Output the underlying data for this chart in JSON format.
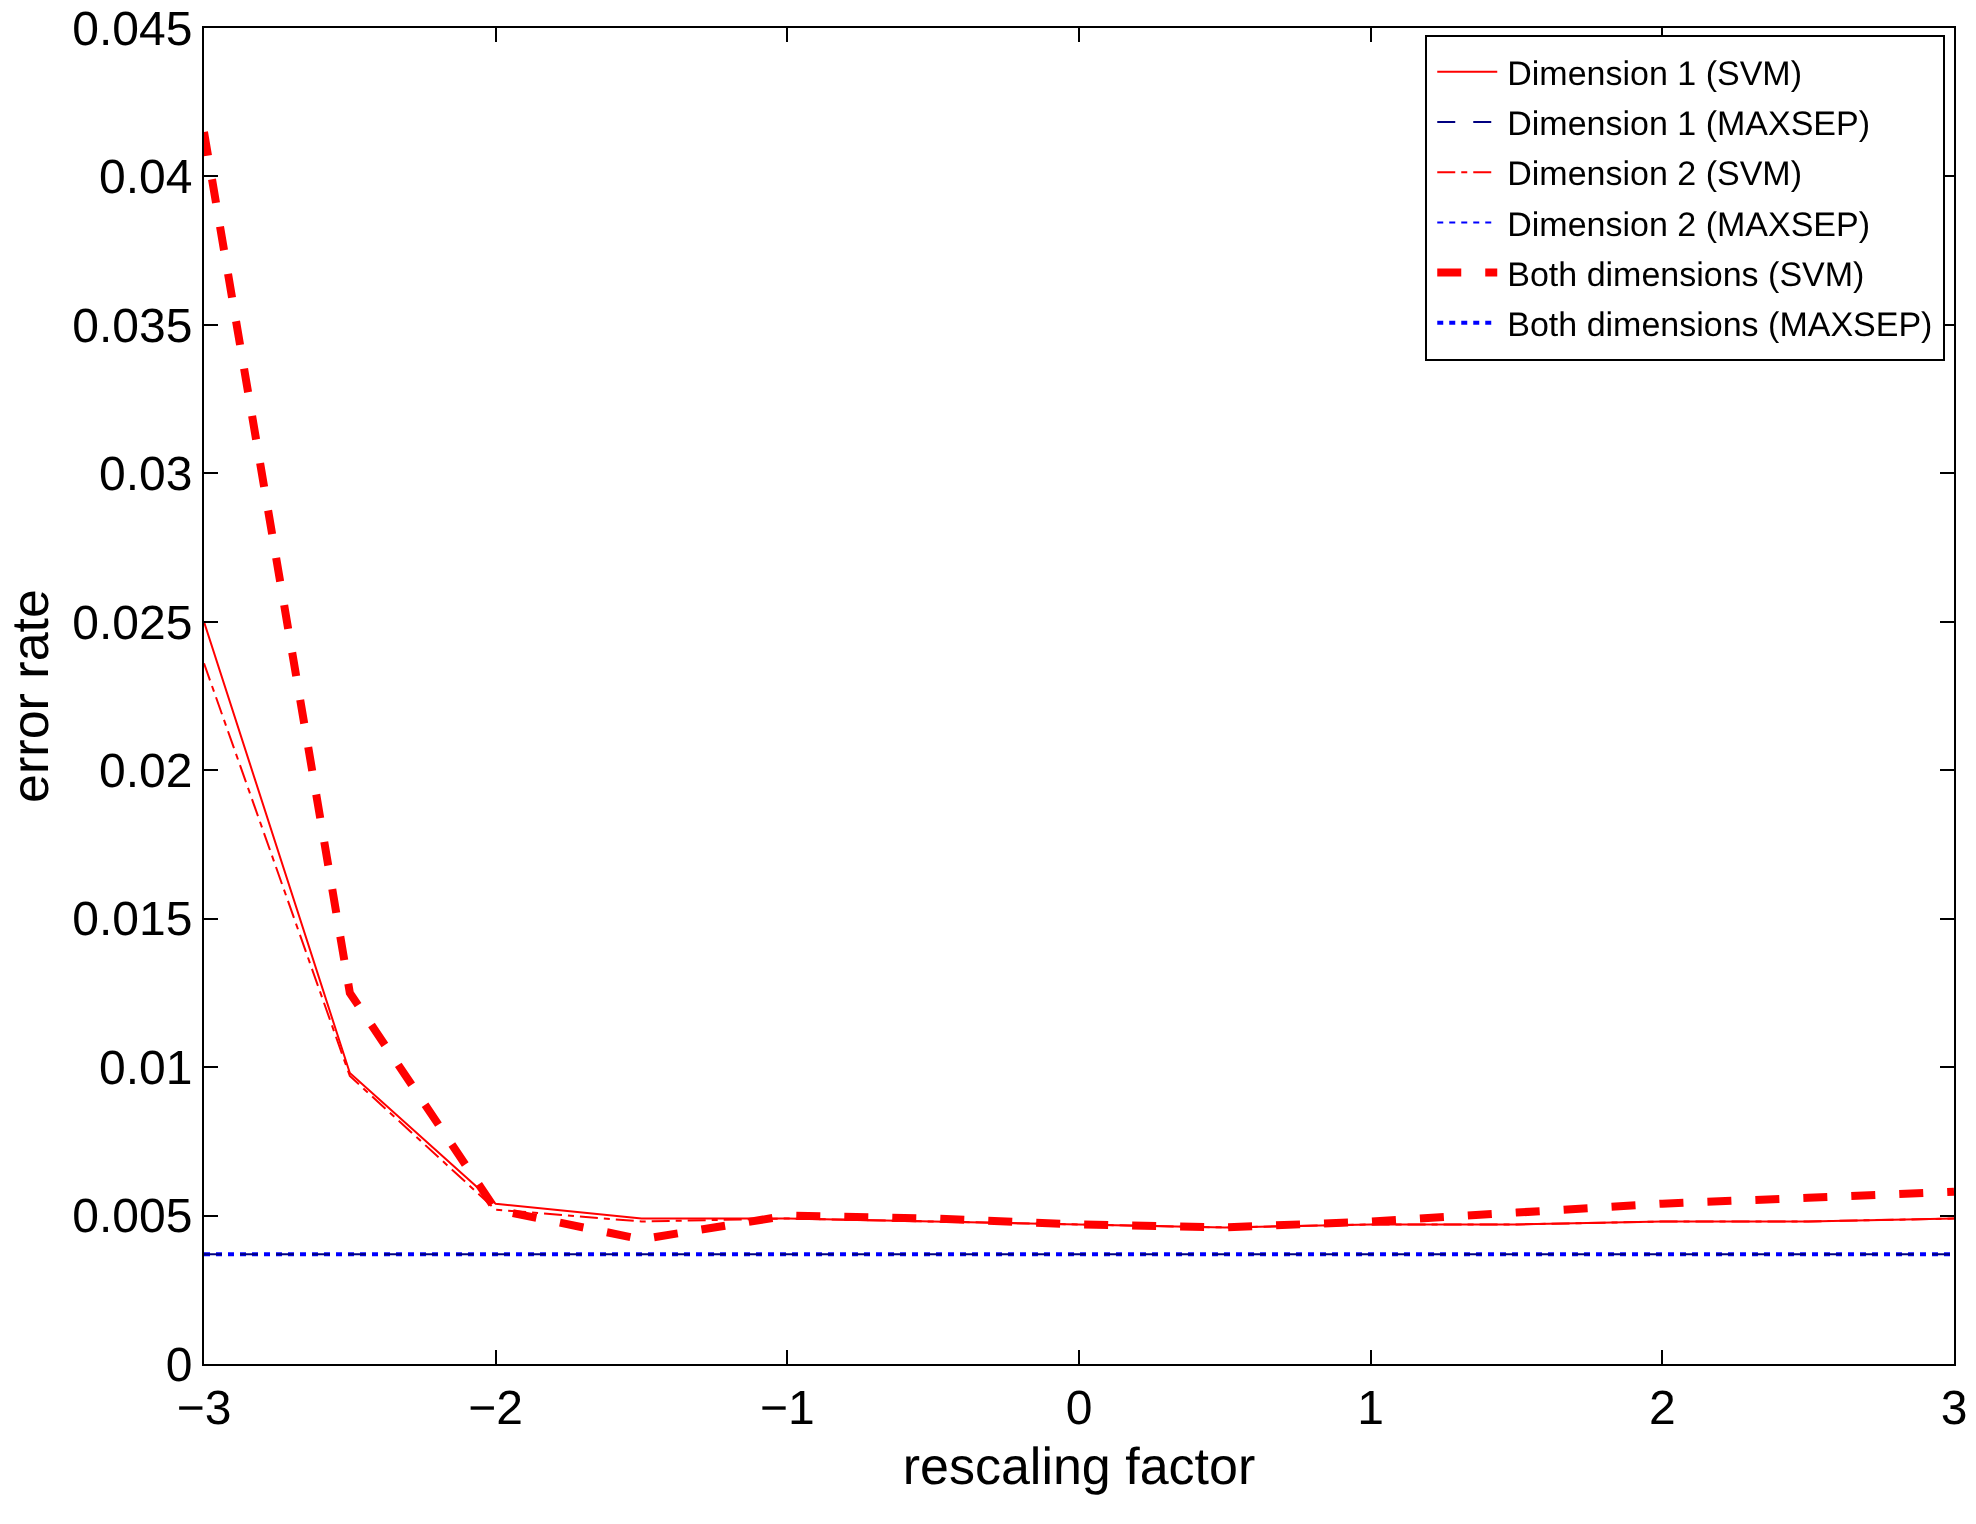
{
  "chart_data": {
    "type": "line",
    "xlabel": "rescaling factor",
    "ylabel": "error rate",
    "x": [
      -3,
      -2.5,
      -2,
      -1.5,
      -1,
      -0.5,
      0,
      0.5,
      1,
      1.5,
      2,
      2.5,
      3
    ],
    "xlim": [
      -3,
      3
    ],
    "xticks": [
      {
        "value": -3,
        "label": "−3"
      },
      {
        "value": -2,
        "label": "−2"
      },
      {
        "value": -1,
        "label": "−1"
      },
      0,
      1,
      2,
      3
    ],
    "ylim": [
      0,
      0.045
    ],
    "yticks": [
      0,
      0.005,
      0.01,
      0.015,
      0.02,
      0.025,
      0.03,
      0.035,
      0.04,
      0.045
    ],
    "grid": false,
    "legend": "top right",
    "marker": "none",
    "series": [
      {
        "name": "Dimension 1 (SVM)",
        "color": "#ff0000",
        "line_style": "solid",
        "values": [
          0.025,
          0.0098,
          0.0054,
          0.0049,
          0.0049,
          0.0048,
          0.0047,
          0.0046,
          0.0047,
          0.0047,
          0.0048,
          0.0048,
          0.0049
        ]
      },
      {
        "name": "Dimension 1 (MAXSEP)",
        "color": "#000080",
        "line_style": "dashed",
        "values": [
          0.0037,
          0.0037,
          0.0037,
          0.0037,
          0.0037,
          0.0037,
          0.0037,
          0.0037,
          0.0037,
          0.0037,
          0.0037,
          0.0037,
          0.0037
        ]
      },
      {
        "name": "Dimension 2 (SVM)",
        "color": "#ff0000",
        "line_style": "dashdot",
        "values": [
          0.0236,
          0.0097,
          0.0052,
          0.0048,
          0.0049,
          0.0048,
          0.0047,
          0.0046,
          0.0047,
          0.0047,
          0.0048,
          0.0048,
          0.0049
        ]
      },
      {
        "name": "Dimension 2 (MAXSEP)",
        "color": "#0000ff",
        "line_style": "dotted",
        "values": [
          null,
          null,
          null,
          null,
          null,
          null,
          null,
          null,
          null,
          null,
          null,
          null,
          null
        ]
      },
      {
        "name": "Both dimensions (SVM)",
        "color": "#ff0000",
        "line_style": "dashed",
        "values": [
          0.0415,
          0.0125,
          0.0052,
          0.0042,
          0.005,
          0.0049,
          0.0047,
          0.0046,
          0.0048,
          0.0051,
          0.0054,
          0.0056,
          0.0058
        ]
      },
      {
        "name": "Both dimensions (MAXSEP)",
        "color": "#0000ff",
        "line_style": "dotted",
        "values": [
          0.0037,
          0.0037,
          0.0037,
          0.0037,
          0.0037,
          0.0037,
          0.0037,
          0.0037,
          0.0037,
          0.0037,
          0.0037,
          0.0037,
          0.0037
        ]
      }
    ]
  }
}
